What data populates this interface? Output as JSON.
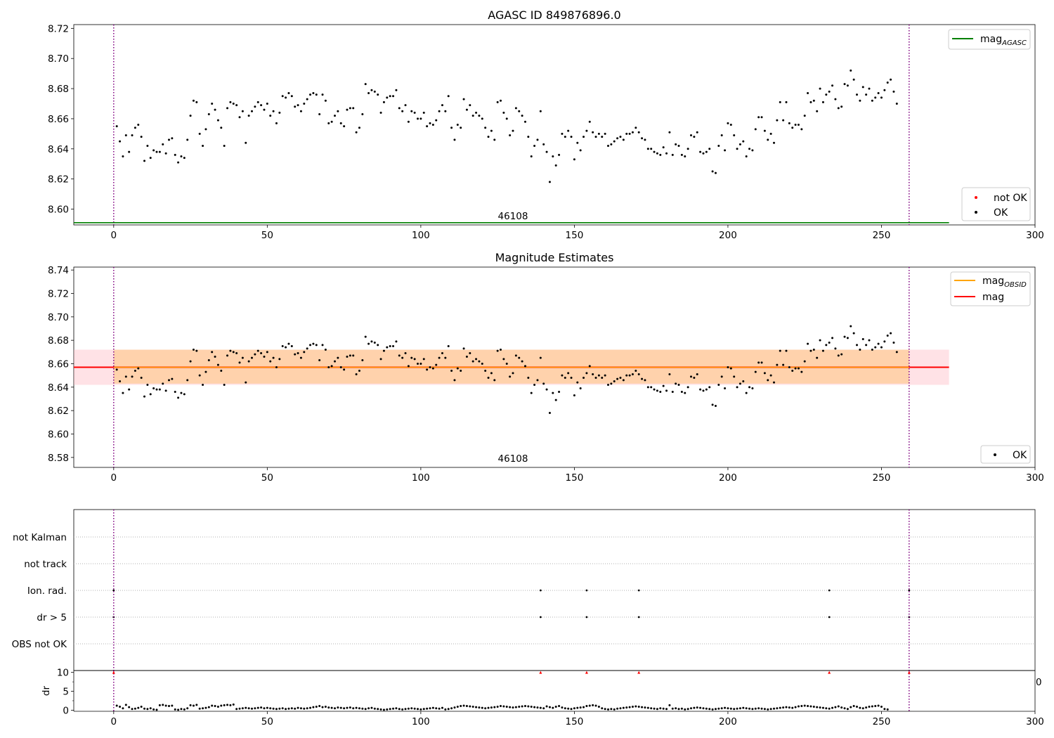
{
  "chart_data": [
    {
      "type": "scatter",
      "title": "AGASC ID 849876896.0",
      "xlim": [
        -13,
        300
      ],
      "ylim": [
        8.5895,
        8.7225
      ],
      "xticks": [
        0,
        50,
        100,
        150,
        200,
        250,
        300
      ],
      "yticks": [
        8.6,
        8.62,
        8.64,
        8.66,
        8.68,
        8.7,
        8.72
      ],
      "ytick_labels": [
        "8.60",
        "8.62",
        "8.64",
        "8.66",
        "8.68",
        "8.70",
        "8.72"
      ],
      "annotation": "46108",
      "obs_boundaries": [
        0,
        259
      ],
      "lines": [
        {
          "name": "mag_AGASC",
          "value": 8.591,
          "x": [
            -13,
            272
          ],
          "color": "#008000"
        }
      ],
      "legend_lines": {
        "position": "upper right",
        "entries": [
          {
            "label": "mag",
            "sub": "AGASC",
            "color": "#008000"
          }
        ]
      },
      "legend_points": {
        "position": "lower right",
        "entries": [
          {
            "label": "not OK",
            "color": "#ff0000"
          },
          {
            "label": "OK",
            "color": "#000000"
          }
        ]
      },
      "series": [
        {
          "name": "OK",
          "color": "#000000",
          "x_start": 1,
          "x_step": 1,
          "y": [
            8.655,
            8.645,
            8.635,
            8.649,
            8.638,
            8.649,
            8.654,
            8.656,
            8.648,
            8.632,
            8.642,
            8.634,
            8.639,
            8.638,
            8.638,
            8.643,
            8.637,
            8.646,
            8.647,
            8.636,
            8.631,
            8.635,
            8.634,
            8.646,
            8.662,
            8.672,
            8.671,
            8.65,
            8.642,
            8.653,
            8.663,
            8.67,
            8.666,
            8.659,
            8.654,
            8.642,
            8.667,
            8.671,
            8.67,
            8.669,
            8.661,
            8.665,
            8.644,
            8.662,
            8.665,
            8.668,
            8.671,
            8.669,
            8.666,
            8.67,
            8.662,
            8.665,
            8.657,
            8.664,
            8.675,
            8.674,
            8.677,
            8.675,
            8.668,
            8.669,
            8.665,
            8.67,
            8.673,
            8.676,
            8.677,
            8.676,
            8.663,
            8.676,
            8.672,
            8.657,
            8.658,
            8.662,
            8.665,
            8.657,
            8.655,
            8.666,
            8.667,
            8.667,
            8.651,
            8.654,
            8.663,
            8.683,
            8.677,
            8.679,
            8.678,
            8.676,
            8.664,
            8.671,
            8.674,
            8.675,
            8.675,
            8.679,
            8.667,
            8.665,
            8.669,
            8.658,
            8.665,
            8.664,
            8.66,
            8.66,
            8.664,
            8.655,
            8.657,
            8.656,
            8.659,
            8.665,
            8.669,
            8.665,
            8.675,
            8.654,
            8.646,
            8.656,
            8.654,
            8.673,
            8.666,
            8.669,
            8.662,
            8.664,
            8.662,
            8.66,
            8.654,
            8.648,
            8.652,
            8.646,
            8.671,
            8.672,
            8.664,
            8.66,
            8.649,
            8.652,
            8.667,
            8.665,
            8.662,
            8.658,
            8.648,
            8.635,
            8.642,
            8.646,
            8.665,
            8.643,
            8.638,
            8.618,
            8.635,
            8.629,
            8.636,
            8.65,
            8.648,
            8.652,
            8.648,
            8.633,
            8.644,
            8.639,
            8.648,
            8.652,
            8.658,
            8.651,
            8.648,
            8.65,
            8.648,
            8.65,
            8.642,
            8.643,
            8.645,
            8.647,
            8.648,
            8.646,
            8.65,
            8.65,
            8.651,
            8.654,
            8.651,
            8.647,
            8.646,
            8.64,
            8.64,
            8.638,
            8.637,
            8.636,
            8.641,
            8.637,
            8.651,
            8.636,
            8.643,
            8.642,
            8.636,
            8.635,
            8.64,
            8.649,
            8.648,
            8.651,
            8.638,
            8.637,
            8.638,
            8.64,
            8.625,
            8.624,
            8.642,
            8.649,
            8.639,
            8.657,
            8.656,
            8.649,
            8.64,
            8.643,
            8.645,
            8.635,
            8.64,
            8.639,
            8.653,
            8.661,
            8.661,
            8.652,
            8.646,
            8.65,
            8.644,
            8.659,
            8.671,
            8.659,
            8.671,
            8.657,
            8.654,
            8.656,
            8.656,
            8.653,
            8.662,
            8.677,
            8.671,
            8.672,
            8.665,
            8.68,
            8.671,
            8.676,
            8.678,
            8.682,
            8.673,
            8.667,
            8.668,
            8.683,
            8.682,
            8.692,
            8.686,
            8.676,
            8.672,
            8.681,
            8.676,
            8.68,
            8.672,
            8.674,
            8.677,
            8.674,
            8.679,
            8.684,
            8.686,
            8.678,
            8.67
          ]
        }
      ]
    },
    {
      "type": "scatter",
      "title": "Magnitude Estimates",
      "xlim": [
        -13,
        300
      ],
      "ylim": [
        8.5715,
        8.7425
      ],
      "xticks": [
        0,
        50,
        100,
        150,
        200,
        250,
        300
      ],
      "yticks": [
        8.58,
        8.6,
        8.62,
        8.64,
        8.66,
        8.68,
        8.7,
        8.72,
        8.74
      ],
      "ytick_labels": [
        "8.58",
        "8.60",
        "8.62",
        "8.64",
        "8.66",
        "8.68",
        "8.70",
        "8.72",
        "8.74"
      ],
      "annotation": "46108",
      "obs_boundaries": [
        0,
        259
      ],
      "lines": [
        {
          "name": "mag",
          "value": 8.657,
          "x": [
            -13,
            272
          ],
          "color": "#ff0000"
        }
      ],
      "bands": [
        {
          "name": "mag band",
          "y_range": [
            8.642,
            8.672
          ],
          "x": [
            -13,
            272
          ],
          "color": "#ffb6c1"
        },
        {
          "name": "mag_OBSID band",
          "y_range": [
            8.643,
            8.672
          ],
          "x": [
            0,
            259
          ],
          "color": "#ffa500"
        }
      ],
      "legend_lines": {
        "position": "upper right",
        "entries": [
          {
            "label": "mag",
            "sub": "OBSID",
            "color": "#ffa500"
          },
          {
            "label": "mag",
            "sub": "",
            "color": "#ff0000"
          }
        ]
      },
      "legend_points": {
        "position": "lower right",
        "entries": [
          {
            "label": "OK",
            "color": "#000000"
          }
        ]
      },
      "series": [
        {
          "name": "OK",
          "color": "#000000",
          "same_as_panel": 0
        }
      ]
    },
    {
      "type": "scatter",
      "title": "",
      "xlim": [
        -13,
        300
      ],
      "categories": [
        "OBS not OK",
        "dr > 5",
        "Ion. rad.",
        "not track",
        "not Kalman"
      ],
      "obs_boundaries": [
        0,
        259
      ],
      "flags": [
        {
          "category": "dr > 5",
          "x": [
            0,
            139,
            154,
            171,
            233,
            259
          ]
        },
        {
          "category": "Ion. rad.",
          "x": [
            0,
            139,
            154,
            171,
            233,
            259
          ]
        }
      ]
    },
    {
      "type": "scatter",
      "title": "",
      "xlim": [
        -13,
        300
      ],
      "ylim": [
        -0.3,
        10.5
      ],
      "xticks": [
        0,
        50,
        100,
        150,
        200,
        250,
        300
      ],
      "yticks": [
        0,
        5,
        10
      ],
      "ytick_labels": [
        "0",
        "5",
        "10"
      ],
      "ylabel": "dr",
      "right_label": "0",
      "obs_boundaries": [
        0,
        259
      ],
      "clipped_markers": {
        "color": "#ff0000",
        "y": 10,
        "x": [
          0,
          139,
          154,
          171,
          233,
          259
        ]
      },
      "series": [
        {
          "name": "dr",
          "color": "#000000",
          "x_start": 1,
          "x_step": 1,
          "y": [
            1.2,
            0.9,
            0.5,
            1.4,
            0.8,
            0.3,
            0.4,
            0.6,
            0.9,
            0.4,
            0.3,
            0.5,
            0.2,
            0.1,
            1.3,
            1.4,
            1.2,
            1.1,
            1.2,
            0.2,
            0.1,
            0.3,
            0.2,
            0.5,
            1.3,
            1.2,
            1.4,
            0.4,
            0.5,
            0.6,
            0.8,
            1.2,
            1.1,
            0.9,
            1.2,
            1.3,
            1.4,
            1.3,
            1.5,
            0.3,
            0.4,
            0.5,
            0.6,
            0.5,
            0.4,
            0.5,
            0.6,
            0.7,
            0.5,
            0.6,
            0.5,
            0.4,
            0.3,
            0.4,
            0.5,
            0.3,
            0.4,
            0.5,
            0.4,
            0.6,
            0.5,
            0.4,
            0.5,
            0.6,
            0.8,
            0.9,
            1.1,
            0.8,
            0.9,
            0.7,
            0.6,
            0.5,
            0.7,
            0.6,
            0.5,
            0.6,
            0.7,
            0.5,
            0.6,
            0.5,
            0.4,
            0.3,
            0.5,
            0.6,
            0.4,
            0.3,
            0.2,
            0.1,
            0.2,
            0.3,
            0.4,
            0.5,
            0.3,
            0.2,
            0.3,
            0.4,
            0.5,
            0.4,
            0.3,
            0.2,
            0.3,
            0.4,
            0.5,
            0.6,
            0.5,
            0.4,
            0.6,
            0.2,
            0.3,
            0.5,
            0.7,
            0.9,
            1.1,
            1.2,
            1.1,
            1.0,
            0.9,
            0.8,
            0.7,
            0.6,
            0.5,
            0.6,
            0.7,
            0.8,
            0.9,
            1.1,
            1.0,
            0.9,
            0.8,
            0.7,
            0.8,
            0.9,
            1.0,
            1.1,
            1.0,
            0.9,
            0.8,
            0.7,
            0.6,
            0.5,
            1.0,
            0.8,
            0.6,
            0.9,
            1.1,
            0.7,
            0.5,
            0.4,
            0.3,
            0.5,
            0.6,
            0.7,
            0.8,
            1.1,
            1.2,
            1.3,
            1.2,
            0.9,
            0.5,
            0.3,
            0.2,
            0.3,
            0.2,
            0.4,
            0.5,
            0.6,
            0.7,
            0.8,
            0.9,
            1.0,
            0.9,
            0.8,
            0.7,
            0.6,
            0.5,
            0.4,
            0.3,
            0.5,
            0.4,
            0.3,
            1.3,
            0.4,
            0.5,
            0.3,
            0.4,
            0.2,
            0.3,
            0.5,
            0.6,
            0.7,
            0.6,
            0.5,
            0.4,
            0.3,
            0.2,
            0.3,
            0.4,
            0.5,
            0.6,
            0.5,
            0.4,
            0.3,
            0.4,
            0.5,
            0.6,
            0.5,
            0.4,
            0.3,
            0.4,
            0.5,
            0.4,
            0.3,
            0.2,
            0.3,
            0.4,
            0.5,
            0.6,
            0.7,
            0.8,
            0.7,
            0.6,
            0.8,
            1.0,
            1.1,
            1.2,
            1.1,
            1.0,
            0.9,
            0.8,
            0.7,
            0.6,
            0.5,
            0.4,
            0.6,
            0.8,
            1.0,
            0.7,
            0.5,
            0.3,
            0.8,
            1.1,
            0.9,
            0.6,
            0.5,
            0.7,
            0.9,
            1.0,
            1.1,
            1.2,
            0.9,
            0.3,
            0.2
          ]
        }
      ]
    }
  ]
}
